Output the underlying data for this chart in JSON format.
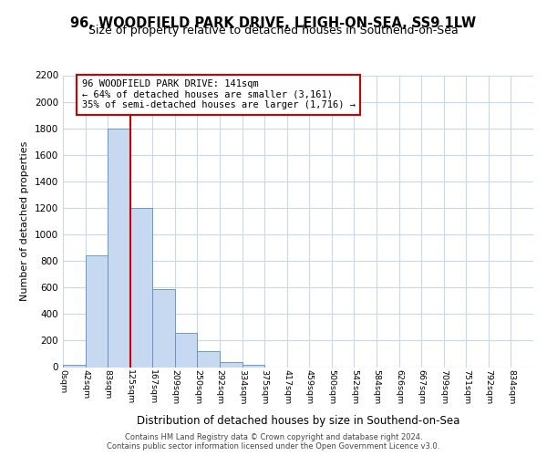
{
  "title": "96, WOODFIELD PARK DRIVE, LEIGH-ON-SEA, SS9 1LW",
  "subtitle": "Size of property relative to detached houses in Southend-on-Sea",
  "xlabel": "Distribution of detached houses by size in Southend-on-Sea",
  "ylabel": "Number of detached properties",
  "footer_line1": "Contains HM Land Registry data © Crown copyright and database right 2024.",
  "footer_line2": "Contains public sector information licensed under the Open Government Licence v3.0.",
  "bar_labels": [
    "0sqm",
    "42sqm",
    "83sqm",
    "125sqm",
    "167sqm",
    "209sqm",
    "250sqm",
    "292sqm",
    "334sqm",
    "375sqm",
    "417sqm",
    "459sqm",
    "500sqm",
    "542sqm",
    "584sqm",
    "626sqm",
    "667sqm",
    "709sqm",
    "751sqm",
    "792sqm",
    "834sqm"
  ],
  "bar_values": [
    20,
    840,
    1800,
    1200,
    590,
    255,
    120,
    40,
    20,
    0,
    0,
    0,
    0,
    0,
    0,
    0,
    0,
    0,
    0,
    0,
    0
  ],
  "bar_color": "#c6d9f0",
  "bar_edge_color": "#5a8fc3",
  "vline_x": 3,
  "vline_color": "#cc0000",
  "annotation_line1": "96 WOODFIELD PARK DRIVE: 141sqm",
  "annotation_line2": "← 64% of detached houses are smaller (3,161)",
  "annotation_line3": "35% of semi-detached houses are larger (1,716) →",
  "ylim": [
    0,
    2200
  ],
  "yticks": [
    0,
    200,
    400,
    600,
    800,
    1000,
    1200,
    1400,
    1600,
    1800,
    2000,
    2200
  ],
  "background_color": "#ffffff",
  "grid_color": "#c8d8e8",
  "title_fontsize": 10.5,
  "subtitle_fontsize": 9
}
